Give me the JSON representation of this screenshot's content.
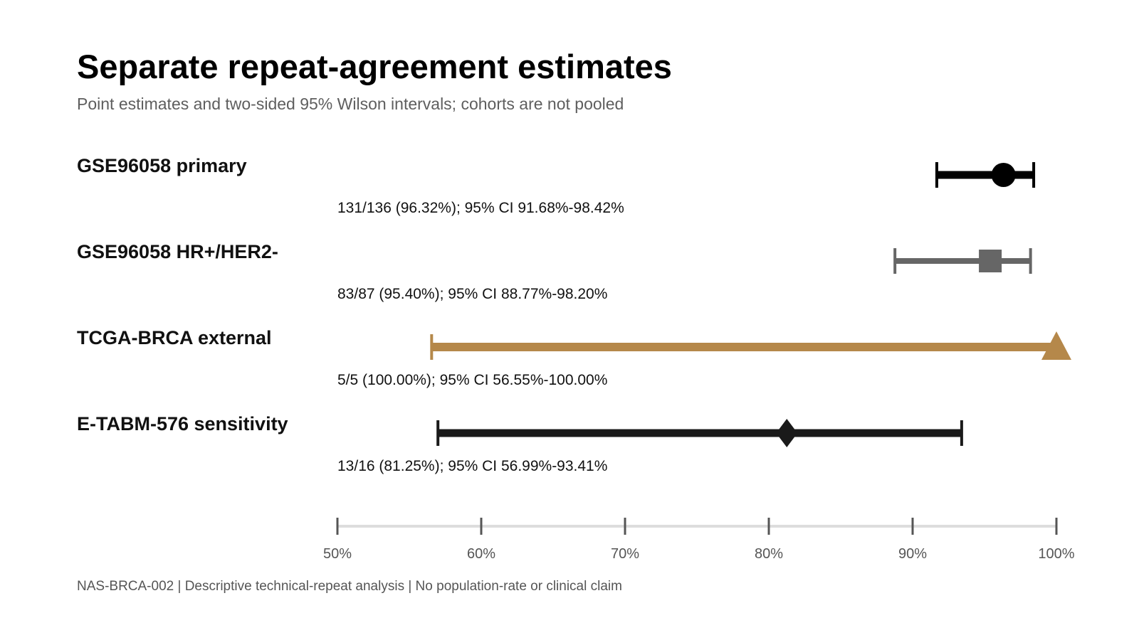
{
  "title": "Separate repeat-agreement estimates",
  "subtitle": "Point estimates and two-sided 95% Wilson intervals; cohorts are not pooled",
  "footer": "NAS-BRCA-002 | Descriptive technical-repeat analysis | No population-rate or clinical claim",
  "chart_data": {
    "type": "forest",
    "xlim": [
      50,
      100
    ],
    "x_ticks": [
      50,
      60,
      70,
      80,
      90,
      100
    ],
    "x_tick_labels": [
      "50%",
      "60%",
      "70%",
      "80%",
      "90%",
      "100%"
    ],
    "grid": false,
    "series": [
      {
        "name": "GSE96058 primary",
        "estimate": 96.32,
        "ci_low": 91.68,
        "ci_high": 98.42,
        "label": "131/136 (96.32%); 95% CI 91.68%-98.42%",
        "marker": "circle",
        "color": "#000000"
      },
      {
        "name": "GSE96058 HR+/HER2-",
        "estimate": 95.4,
        "ci_low": 88.77,
        "ci_high": 98.2,
        "label": "83/87 (95.40%); 95% CI 88.77%-98.20%",
        "marker": "square",
        "color": "#666666"
      },
      {
        "name": "TCGA-BRCA external",
        "estimate": 100.0,
        "ci_low": 56.55,
        "ci_high": 100.0,
        "label": "5/5 (100.00%); 95% CI 56.55%-100.00%",
        "marker": "triangle",
        "color": "#b5884a"
      },
      {
        "name": "E-TABM-576 sensitivity",
        "estimate": 81.25,
        "ci_low": 56.99,
        "ci_high": 93.41,
        "label": "13/16 (81.25%); 95% CI 56.99%-93.41%",
        "marker": "diamond",
        "color": "#1a1a1a"
      }
    ]
  }
}
